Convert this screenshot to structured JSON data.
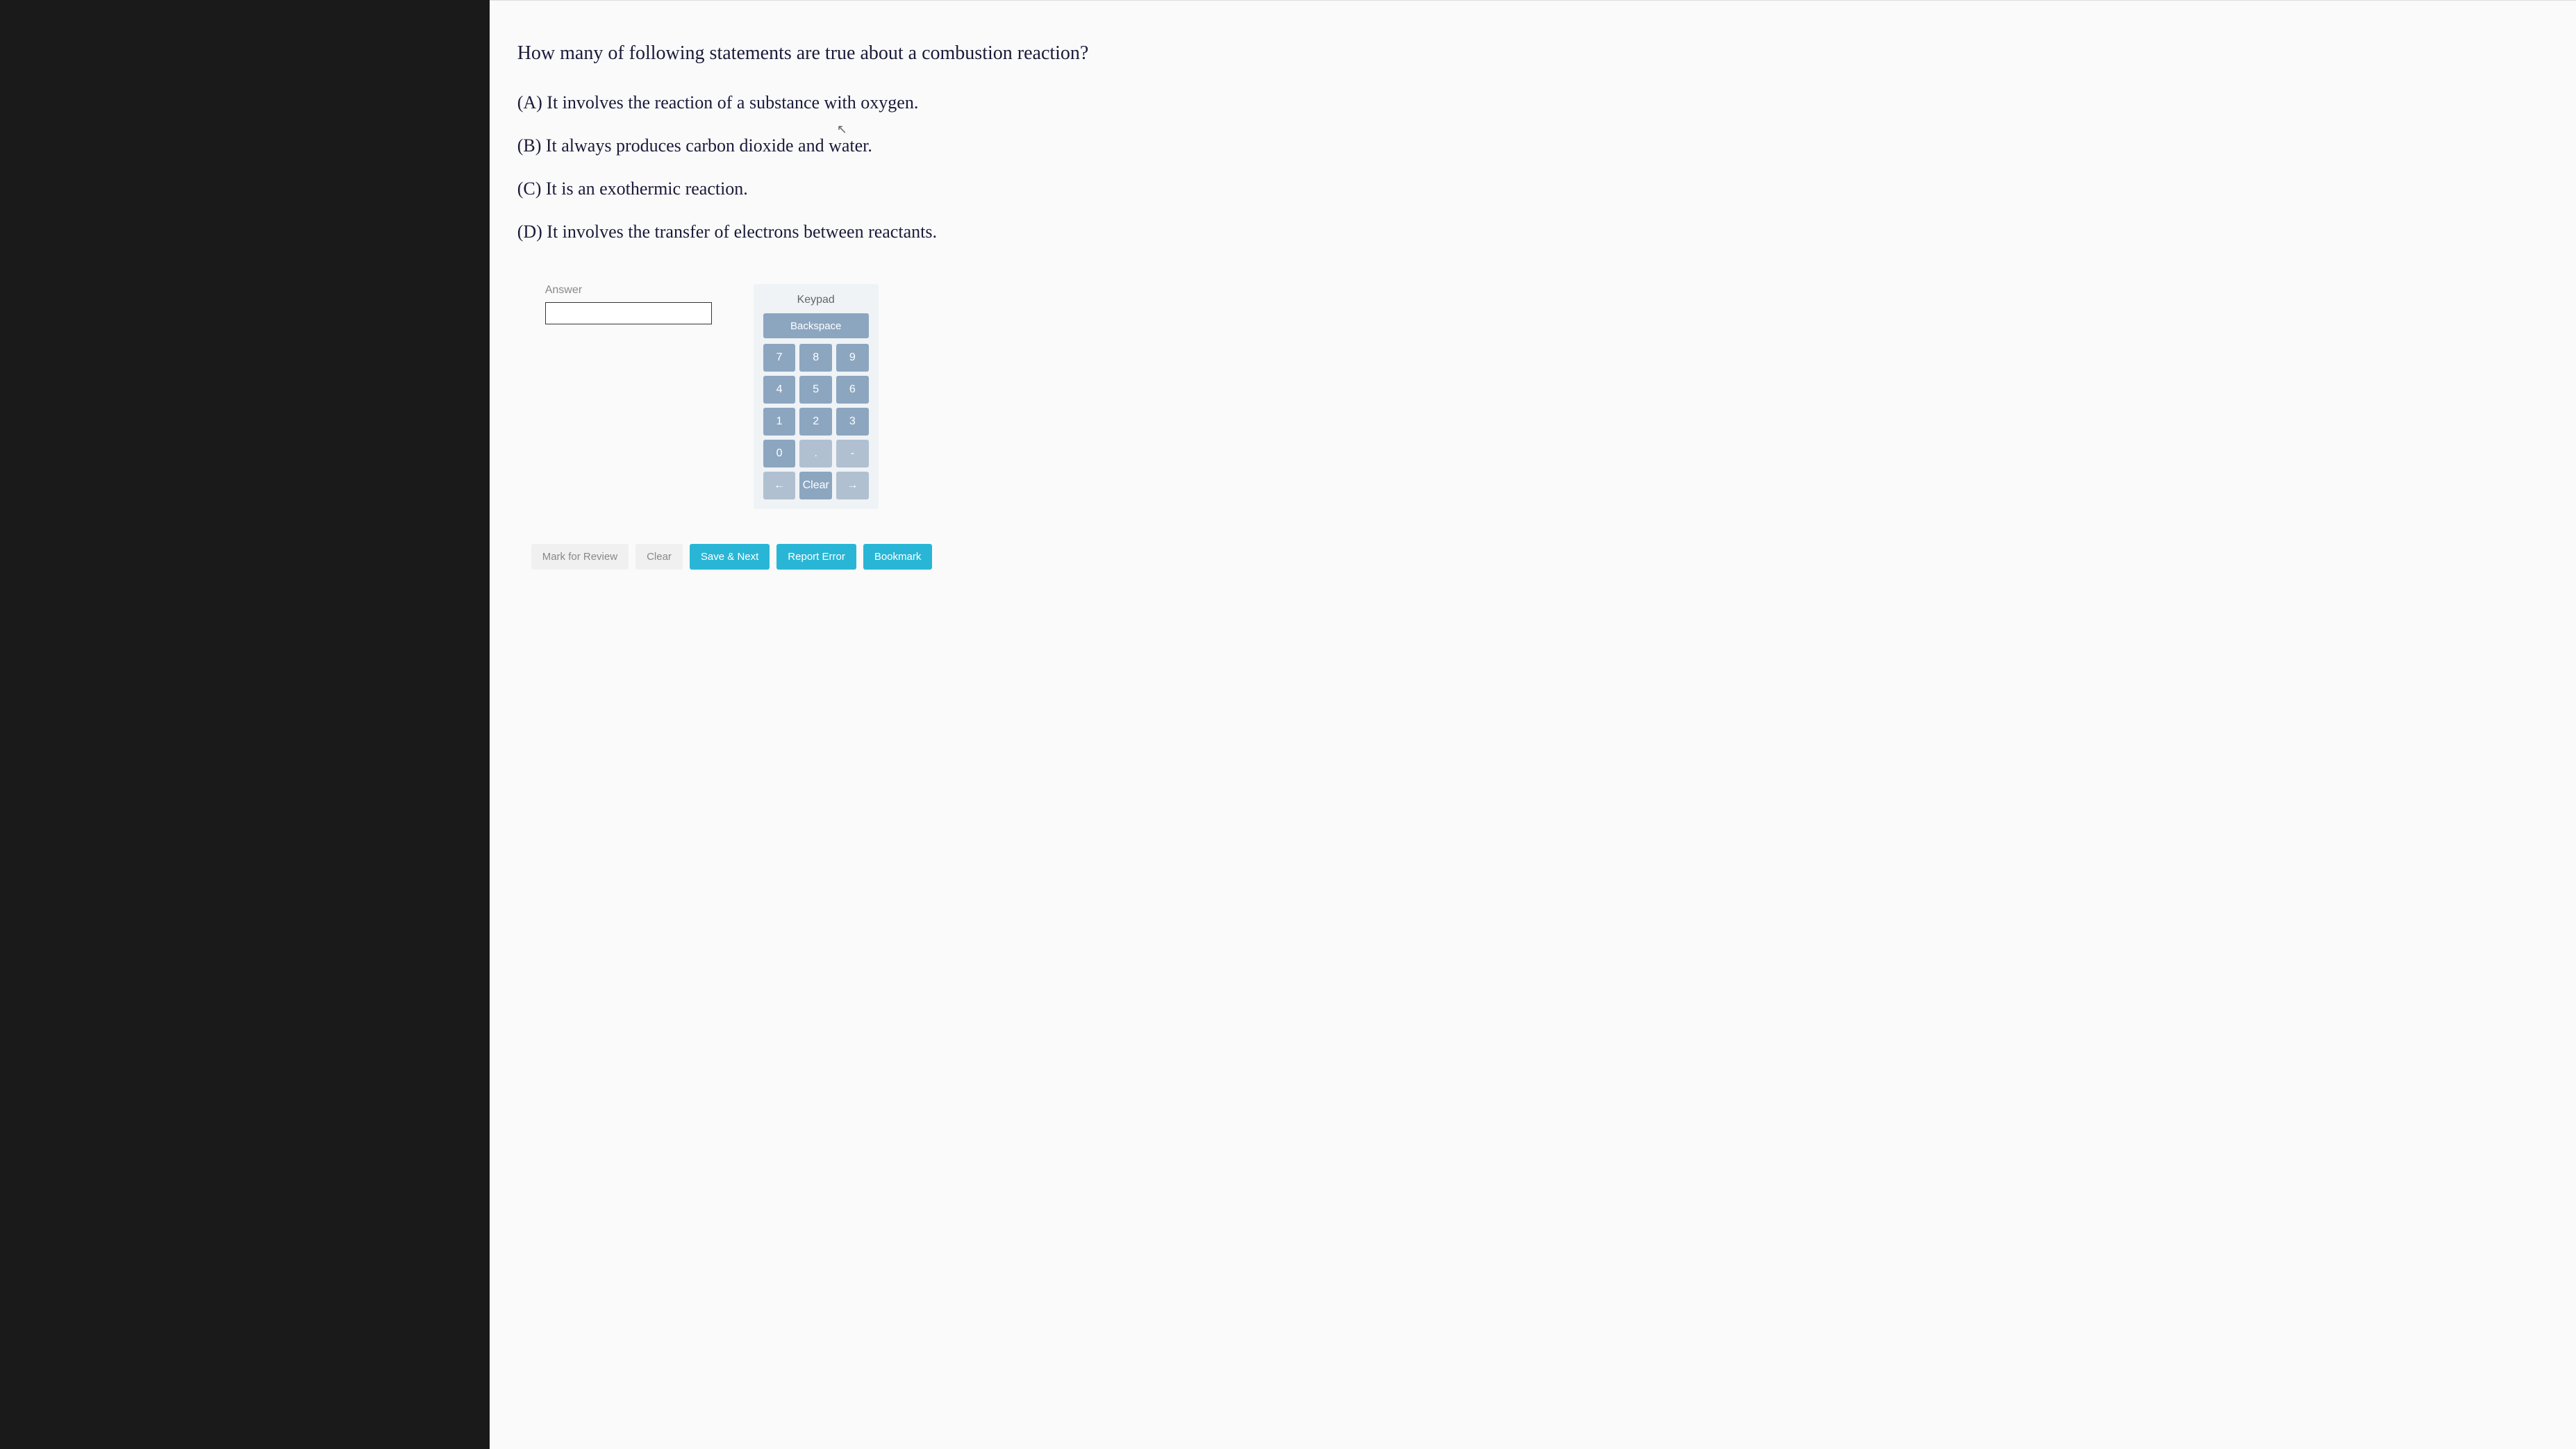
{
  "question": {
    "text": "How many of following statements are true about a combustion reaction?",
    "options": [
      "(A) It involves the reaction of a substance with oxygen.",
      "(B) It always produces carbon dioxide and water.",
      "(C) It is an exothermic reaction.",
      "(D) It involves the transfer of electrons between reactants."
    ]
  },
  "answer": {
    "label": "Answer",
    "value": ""
  },
  "keypad": {
    "title": "Keypad",
    "backspace": "Backspace",
    "keys": [
      "7",
      "8",
      "9",
      "4",
      "5",
      "6",
      "1",
      "2",
      "3",
      "0",
      ".",
      "-"
    ],
    "navLeft": "←",
    "clear": "Clear",
    "navRight": "→"
  },
  "bottomBar": {
    "markReview": "Mark for Review",
    "clear": "Clear",
    "saveNext": "Save & Next",
    "reportError": "Report Error",
    "bookmark": "Bookmark"
  },
  "colors": {
    "darkBg": "#1a1a1a",
    "panelBg": "#fafafa",
    "textColor": "#1a1a3a",
    "keypadBg": "#eff3f6",
    "keypadBtn": "#8ca6c0",
    "btnBlue": "#29b6d6",
    "btnLight": "#f0f0f0"
  }
}
